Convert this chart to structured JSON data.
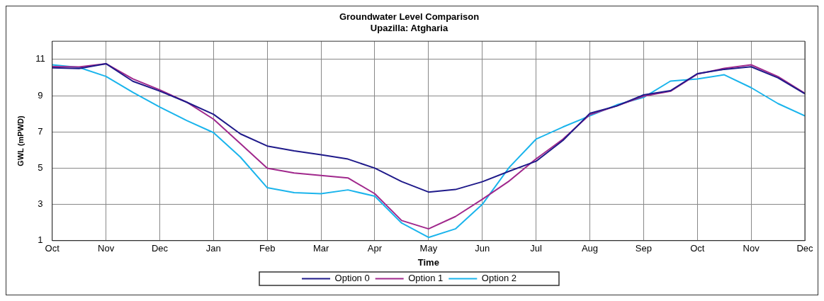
{
  "chart_data": {
    "type": "line",
    "title": "Groundwater Level Comparison",
    "subtitle": "Upazilla: Atgharia",
    "xlabel": "Time",
    "ylabel": "GWL (mPWD)",
    "categories": [
      "Oct",
      null,
      "Nov",
      null,
      "Dec",
      null,
      "Jan",
      null,
      "Feb",
      null,
      "Mar",
      null,
      "Apr",
      null,
      "May",
      null,
      "Jun",
      null,
      "Jul",
      null,
      "Aug",
      null,
      "Sep",
      null,
      "Oct",
      null,
      "Nov",
      null,
      "Dec"
    ],
    "ylim": [
      1,
      12
    ],
    "yticks": [
      1,
      3,
      5,
      7,
      9,
      11
    ],
    "grid": true,
    "legend": "bottom",
    "marker": "none",
    "line_style": "solid",
    "series": [
      {
        "name": "Option 0",
        "color": "#1f1a8a",
        "values": [
          10.53,
          10.49,
          10.76,
          9.79,
          9.25,
          8.64,
          7.97,
          6.89,
          6.22,
          5.95,
          5.74,
          5.5,
          5,
          4.26,
          3.68,
          3.82,
          4.25,
          4.83,
          5.38,
          6.53,
          8.02,
          8.43,
          9.04,
          9.27,
          10.21,
          10.45,
          10.59,
          9.98,
          9.1
        ]
      },
      {
        "name": "Option 1",
        "color": "#a0288c",
        "values": [
          10.6,
          10.58,
          10.76,
          9.92,
          9.32,
          8.64,
          7.7,
          6.35,
          5,
          4.73,
          4.6,
          4.46,
          3.59,
          2.11,
          1.65,
          2.33,
          3.28,
          4.29,
          5.51,
          6.6,
          7.95,
          8.43,
          8.97,
          9.24,
          10.19,
          10.5,
          10.7,
          10.05,
          9.13
        ]
      },
      {
        "name": "Option 2",
        "color": "#1ab4ec",
        "values": [
          10.7,
          10.55,
          10.06,
          9.18,
          8.37,
          7.63,
          6.96,
          5.61,
          3.92,
          3.65,
          3.59,
          3.8,
          3.45,
          1.97,
          1.18,
          1.65,
          3,
          5.04,
          6.6,
          7.27,
          7.88,
          8.49,
          8.9,
          9.8,
          9.92,
          10.15,
          9.44,
          8.56,
          7.88
        ]
      }
    ]
  }
}
